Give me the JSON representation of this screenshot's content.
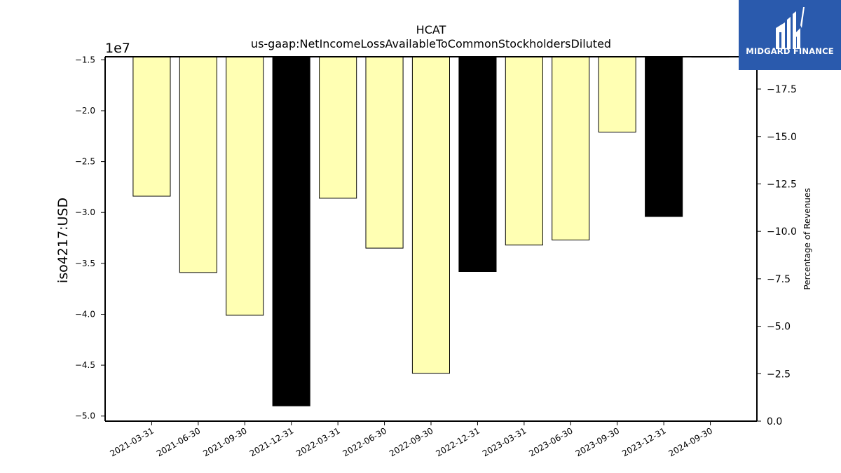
{
  "chart_data": {
    "type": "bar",
    "title": "HCAT",
    "subtitle": "us-gaap:NetIncomeLossAvailableToCommonStockholdersDiluted",
    "ylabel": "iso4217:USD",
    "y_offset_label": "1e7",
    "y2label": "Percentage of Revenues",
    "ylim": [
      -50500000.0,
      -14700000.0
    ],
    "y2lim": [
      0.0,
      -19.2
    ],
    "yticks": [
      "−1.5",
      "−2.0",
      "−2.5",
      "−3.0",
      "−3.5",
      "−4.0",
      "−4.5",
      "−5.0"
    ],
    "ytick_values": [
      -15000000.0,
      -20000000.0,
      -25000000.0,
      -30000000.0,
      -35000000.0,
      -40000000.0,
      -45000000.0,
      -50000000.0
    ],
    "y2ticks": [
      "0.0",
      "−2.5",
      "−5.0",
      "−7.5",
      "−10.0",
      "−12.5",
      "−15.0",
      "−17.5"
    ],
    "y2tick_values": [
      0.0,
      -2.5,
      -5.0,
      -7.5,
      -10.0,
      -12.5,
      -15.0,
      -17.5
    ],
    "categories": [
      "2021-03-31",
      "2021-06-30",
      "2021-09-30",
      "2021-12-31",
      "2022-03-31",
      "2022-06-30",
      "2022-09-30",
      "2022-12-31",
      "2023-03-31",
      "2023-06-30",
      "2023-09-30",
      "2023-12-31",
      "2024-09-30"
    ],
    "values": [
      -28400000,
      -35900000,
      -40100000,
      -49000000,
      -28600000,
      -33500000,
      -45800000,
      -35800000,
      -33200000,
      -32700000,
      -22100000,
      -30400000,
      -14700000
    ],
    "annual": [
      false,
      false,
      false,
      true,
      false,
      false,
      false,
      true,
      false,
      false,
      false,
      true,
      false
    ],
    "colors": {
      "quarterly": "#ffffb3",
      "annual": "#000000",
      "edge": "#000000"
    },
    "grid": false,
    "legend": "none"
  },
  "logo": {
    "text": "MIDGARD FINANCE",
    "background": "#2a5aad",
    "icon": "midgard-logo-icon"
  }
}
